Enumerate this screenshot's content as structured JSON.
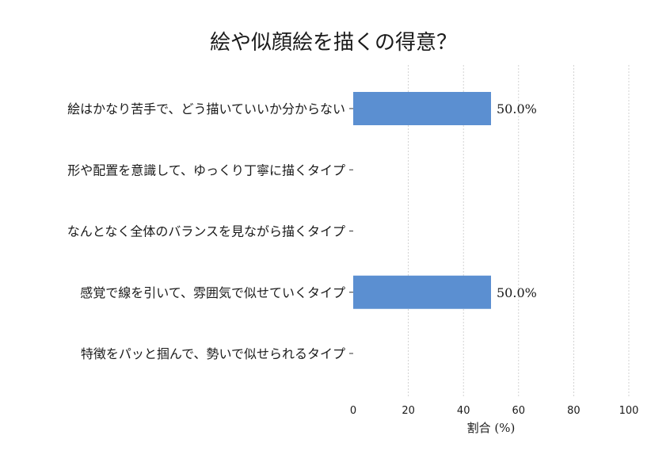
{
  "chart_data": {
    "type": "bar",
    "orientation": "horizontal",
    "title": "絵や似顔絵を描くの得意？",
    "xlabel": "割合 (%)",
    "ylabel": "",
    "xlim": [
      0,
      100
    ],
    "x_ticks": [
      "0",
      "20",
      "40",
      "60",
      "80",
      "100"
    ],
    "grid": true,
    "bar_color": "#5b8fd1",
    "categories": [
      "絵はかなり苦手で、どう描いていいか分からない",
      "形や配置を意識して、ゆっくり丁寧に描くタイプ",
      "なんとなく全体のバランスを見ながら描くタイプ",
      "感覚で線を引いて、雰囲気で似せていくタイプ",
      "特徴をパッと掴んで、勢いで似せられるタイプ"
    ],
    "values": [
      50.0,
      0,
      0,
      50.0,
      0
    ],
    "data_labels": [
      "50.0%",
      "",
      "",
      "50.0%",
      ""
    ]
  }
}
